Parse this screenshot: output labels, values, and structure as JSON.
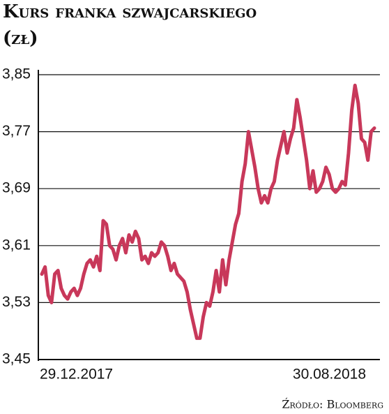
{
  "title": "Kurs franka szwajcarskiego",
  "subtitle": "(zł)",
  "source": "Źródło: Bloomberg",
  "chart_data": {
    "type": "line",
    "categories": [
      "29.12.2017",
      null,
      null,
      null,
      null,
      null,
      null,
      null,
      null,
      null,
      null,
      null,
      null,
      null,
      null,
      null,
      null,
      null,
      null,
      null,
      null,
      null,
      null,
      null,
      null,
      null,
      null,
      null,
      null,
      null,
      null,
      null,
      null,
      null,
      null,
      null,
      null,
      null,
      null,
      null,
      null,
      null,
      null,
      null,
      null,
      null,
      null,
      null,
      null,
      null,
      null,
      null,
      null,
      null,
      null,
      null,
      null,
      null,
      null,
      null,
      null,
      null,
      null,
      null,
      null,
      null,
      null,
      null,
      null,
      null,
      null,
      null,
      null,
      null,
      null,
      null,
      null,
      null,
      null,
      null,
      null,
      null,
      null,
      null,
      null,
      null,
      null,
      null,
      null,
      null,
      null,
      null,
      null,
      null,
      null,
      null,
      null,
      null,
      null,
      null,
      null,
      null,
      null,
      "30.08.2018"
    ],
    "series": [
      {
        "color": "#c8385a",
        "values": [
          3.57,
          3.58,
          3.54,
          3.53,
          3.57,
          3.575,
          3.55,
          3.54,
          3.535,
          3.545,
          3.55,
          3.54,
          3.55,
          3.57,
          3.585,
          3.59,
          3.58,
          3.595,
          3.575,
          3.645,
          3.64,
          3.61,
          3.605,
          3.59,
          3.61,
          3.62,
          3.6,
          3.625,
          3.615,
          3.63,
          3.62,
          3.59,
          3.595,
          3.585,
          3.6,
          3.595,
          3.6,
          3.615,
          3.61,
          3.595,
          3.575,
          3.585,
          3.57,
          3.565,
          3.56,
          3.545,
          3.52,
          3.5,
          3.48,
          3.48,
          3.51,
          3.53,
          3.525,
          3.545,
          3.575,
          3.545,
          3.59,
          3.555,
          3.59,
          3.615,
          3.64,
          3.655,
          3.7,
          3.725,
          3.77,
          3.745,
          3.72,
          3.69,
          3.67,
          3.68,
          3.67,
          3.69,
          3.7,
          3.73,
          3.75,
          3.77,
          3.74,
          3.76,
          3.775,
          3.815,
          3.79,
          3.76,
          3.73,
          3.69,
          3.715,
          3.685,
          3.69,
          3.7,
          3.72,
          3.71,
          3.69,
          3.685,
          3.69,
          3.7,
          3.695,
          3.74,
          3.8,
          3.835,
          3.81,
          3.76,
          3.755,
          3.73,
          3.77,
          3.775
        ]
      }
    ],
    "ylim": [
      3.45,
      3.85
    ],
    "yticks": [
      {
        "value": 3.45,
        "label": "3,45"
      },
      {
        "value": 3.53,
        "label": "3,53"
      },
      {
        "value": 3.61,
        "label": "3,61"
      },
      {
        "value": 3.69,
        "label": "3,69"
      },
      {
        "value": 3.77,
        "label": "3,77"
      },
      {
        "value": 3.85,
        "label": "3,85"
      }
    ],
    "grid": true
  }
}
